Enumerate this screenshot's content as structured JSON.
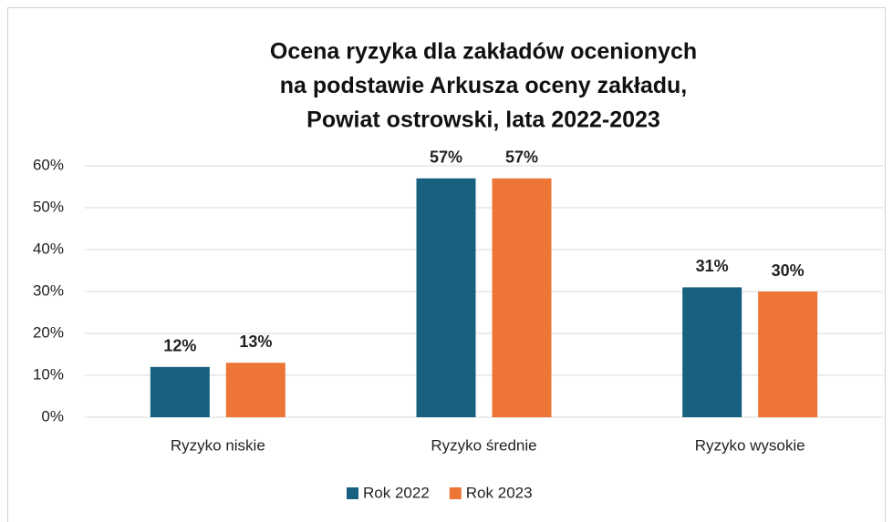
{
  "chart_data": {
    "type": "bar",
    "title": [
      "Ocena ryzyka dla zakładów ocenionych",
      "na podstawie Arkusza oceny zakładu,",
      "Powiat ostrowski, lata 2022-2023"
    ],
    "categories": [
      "Ryzyko niskie",
      "Ryzyko średnie",
      "Ryzyko wysokie"
    ],
    "series": [
      {
        "name": "Rok 2022",
        "color": "#17607f",
        "values": [
          12,
          57,
          31
        ],
        "value_labels": [
          "12%",
          "57%",
          "31%"
        ]
      },
      {
        "name": "Rok 2023",
        "color": "#ed7535",
        "values": [
          13,
          57,
          30
        ],
        "value_labels": [
          "13%",
          "57%",
          "30%"
        ]
      }
    ],
    "ylim": [
      0,
      60
    ],
    "yticks": [
      {
        "value": 0,
        "label": "0%"
      },
      {
        "value": 10,
        "label": "10%"
      },
      {
        "value": 20,
        "label": "20%"
      },
      {
        "value": 30,
        "label": "30%"
      },
      {
        "value": 40,
        "label": "40%"
      },
      {
        "value": 50,
        "label": "50%"
      },
      {
        "value": 60,
        "label": "60%"
      }
    ],
    "grid": true,
    "legend": "bottom"
  }
}
